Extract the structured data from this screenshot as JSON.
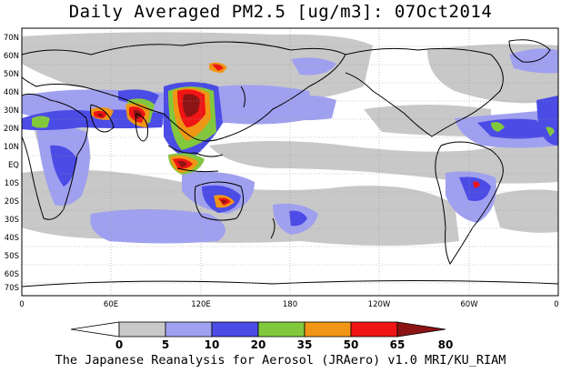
{
  "title": "Daily Averaged PM2.5 [ug/m3]: 07Oct2014",
  "footer": "The Japanese Reanalysis for Aerosol (JRAero) v1.0 MRI/KU_RIAM",
  "map": {
    "lat_labels": [
      "70N",
      "60N",
      "50N",
      "40N",
      "30N",
      "20N",
      "10N",
      "EQ",
      "10S",
      "20S",
      "30S",
      "40S",
      "50S",
      "60S",
      "70S"
    ],
    "lon_labels": [
      "0",
      "60E",
      "120E",
      "180",
      "120W",
      "60W",
      "0"
    ],
    "grid": true
  },
  "colorbar": {
    "bins": [
      {
        "color": "#ffffff"
      },
      {
        "color": "#c8c8c8"
      },
      {
        "color": "#a0a0f0"
      },
      {
        "color": "#4b4be6"
      },
      {
        "color": "#82c83c"
      },
      {
        "color": "#f09614"
      },
      {
        "color": "#f01414"
      },
      {
        "color": "#8c1414"
      }
    ],
    "labels": [
      "0",
      "5",
      "10",
      "20",
      "35",
      "50",
      "65",
      "80"
    ]
  },
  "palette": {
    "grey": "#c8c8c8",
    "lightblue": "#a0a0f0",
    "blue": "#4b4be6",
    "green": "#82c83c",
    "orange": "#f09614",
    "red": "#f01414",
    "darkred": "#8c1414"
  }
}
